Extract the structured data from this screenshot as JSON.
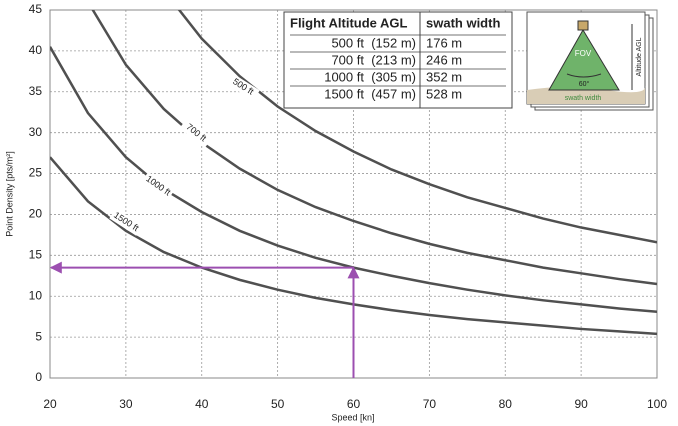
{
  "chart_data": {
    "type": "line",
    "x_label": "Speed [kn]",
    "y_label": "Point Density [pts/m²]",
    "x": [
      20,
      25,
      30,
      35,
      40,
      45,
      50,
      55,
      60,
      65,
      70,
      75,
      80,
      85,
      90,
      95,
      100
    ],
    "xlim": [
      20,
      100
    ],
    "xticks": [
      20,
      30,
      40,
      50,
      60,
      70,
      80,
      90,
      100
    ],
    "ylim": [
      0,
      45
    ],
    "yticks": [
      0,
      5,
      10,
      15,
      20,
      25,
      30,
      35,
      40,
      45
    ],
    "grid": true,
    "series": [
      {
        "name": "500 ft",
        "color": "#505050",
        "values": [
          null,
          null,
          null,
          47.4,
          41.5,
          36.9,
          33.2,
          30.2,
          27.7,
          25.5,
          23.7,
          22.1,
          20.8,
          19.5,
          18.4,
          17.5,
          16.6
        ]
      },
      {
        "name": "700 ft",
        "color": "#505050",
        "values": [
          null,
          46.0,
          38.3,
          32.9,
          28.8,
          25.6,
          23.0,
          20.9,
          19.2,
          17.7,
          16.4,
          15.3,
          14.4,
          13.5,
          12.8,
          12.1,
          11.5
        ]
      },
      {
        "name": "1000 ft",
        "color": "#505050",
        "values": [
          40.5,
          32.4,
          27.0,
          23.1,
          20.3,
          18.0,
          16.2,
          14.7,
          13.5,
          12.5,
          11.6,
          10.8,
          10.1,
          9.5,
          9.0,
          8.5,
          8.1
        ]
      },
      {
        "name": "1500 ft",
        "color": "#505050",
        "values": [
          27.0,
          21.6,
          18.0,
          15.4,
          13.5,
          12.0,
          10.8,
          9.8,
          9.0,
          8.3,
          7.7,
          7.2,
          6.8,
          6.4,
          6.0,
          5.7,
          5.4
        ]
      }
    ],
    "guide": {
      "x": 60,
      "y": 13.5,
      "color": "#9c4fb0"
    },
    "table": {
      "columns": [
        "Flight Altitude AGL",
        "swath width"
      ],
      "rows": [
        [
          "500 ft  (152 m)",
          "176 m"
        ],
        [
          "700 ft  (213 m)",
          "246 m"
        ],
        [
          "1000 ft  (305 m)",
          "352 m"
        ],
        [
          "1500 ft  (457 m)",
          "528 m"
        ]
      ]
    },
    "diagram_labels": {
      "fov": "FOV",
      "angle": "60°",
      "altitude": "Altitude AGL",
      "swath": "swath width"
    }
  }
}
